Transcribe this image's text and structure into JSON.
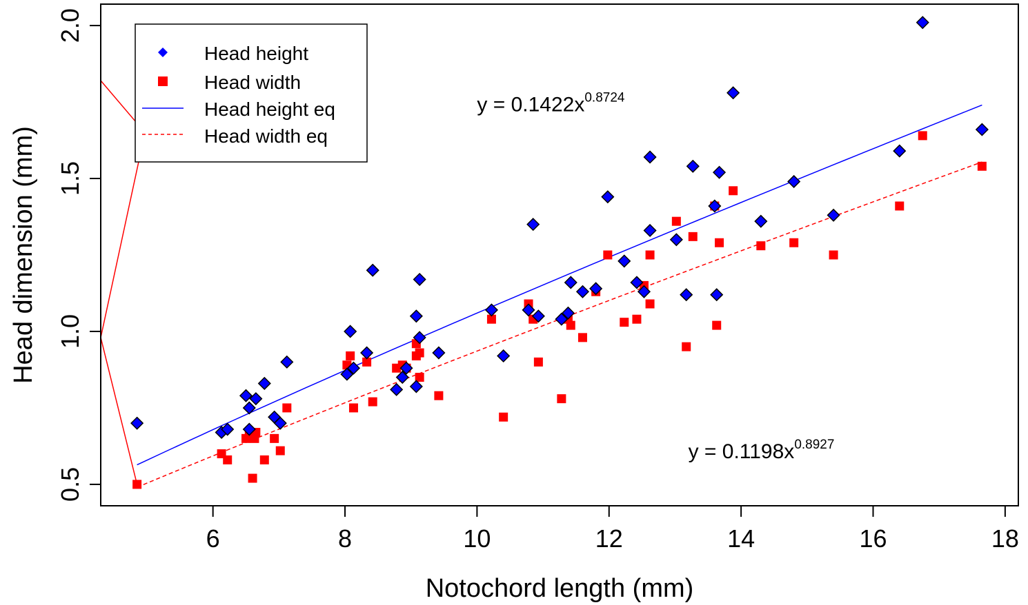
{
  "chart_data": {
    "type": "scatter",
    "xlabel": "Notochord length (mm)",
    "ylabel": "Head dimension (mm)",
    "xlim": [
      4.3,
      18.2
    ],
    "ylim": [
      0.43,
      2.07
    ],
    "x_ticks": [
      6,
      8,
      10,
      12,
      14,
      16,
      18
    ],
    "y_ticks": [
      0.5,
      1.0,
      1.5,
      2.0
    ],
    "x_tick_labels": [
      "6",
      "8",
      "10",
      "12",
      "14",
      "16",
      "18"
    ],
    "y_tick_labels": [
      "0.5",
      "1.0",
      "1.5",
      "2.0"
    ],
    "grid": false,
    "legend_position": "top-left",
    "series": [
      {
        "name": "Head height",
        "kind": "points",
        "marker": "diamond",
        "color": "#0000ff",
        "points": [
          [
            4.85,
            0.7
          ],
          [
            6.13,
            0.67
          ],
          [
            6.22,
            0.68
          ],
          [
            6.5,
            0.79
          ],
          [
            6.55,
            0.75
          ],
          [
            6.55,
            0.68
          ],
          [
            6.65,
            0.78
          ],
          [
            6.78,
            0.83
          ],
          [
            6.93,
            0.72
          ],
          [
            7.02,
            0.7
          ],
          [
            7.12,
            0.9
          ],
          [
            8.03,
            0.86
          ],
          [
            8.08,
            1.0
          ],
          [
            8.13,
            0.88
          ],
          [
            8.33,
            0.93
          ],
          [
            8.42,
            1.2
          ],
          [
            8.78,
            0.81
          ],
          [
            8.87,
            0.85
          ],
          [
            8.93,
            0.88
          ],
          [
            9.08,
            1.05
          ],
          [
            9.08,
            0.82
          ],
          [
            9.13,
            0.98
          ],
          [
            9.13,
            1.17
          ],
          [
            9.42,
            0.93
          ],
          [
            10.22,
            1.07
          ],
          [
            10.4,
            0.92
          ],
          [
            10.78,
            1.07
          ],
          [
            10.85,
            1.35
          ],
          [
            10.93,
            1.05
          ],
          [
            11.28,
            1.04
          ],
          [
            11.38,
            1.06
          ],
          [
            11.42,
            1.16
          ],
          [
            11.6,
            1.13
          ],
          [
            11.8,
            1.14
          ],
          [
            11.98,
            1.44
          ],
          [
            12.23,
            1.23
          ],
          [
            12.42,
            1.16
          ],
          [
            12.53,
            1.13
          ],
          [
            12.62,
            1.57
          ],
          [
            12.62,
            1.33
          ],
          [
            13.02,
            1.3
          ],
          [
            13.17,
            1.12
          ],
          [
            13.27,
            1.54
          ],
          [
            13.6,
            1.41
          ],
          [
            13.63,
            1.12
          ],
          [
            13.67,
            1.52
          ],
          [
            13.88,
            1.78
          ],
          [
            14.3,
            1.36
          ],
          [
            14.8,
            1.49
          ],
          [
            15.4,
            1.38
          ],
          [
            16.4,
            1.59
          ],
          [
            16.75,
            2.01
          ],
          [
            17.65,
            1.66
          ]
        ]
      },
      {
        "name": "Head width",
        "kind": "points",
        "marker": "square",
        "color": "#ff0000",
        "points": [
          [
            4.85,
            0.5
          ],
          [
            6.13,
            0.6
          ],
          [
            6.22,
            0.58
          ],
          [
            6.5,
            0.65
          ],
          [
            6.55,
            0.67
          ],
          [
            6.6,
            0.52
          ],
          [
            6.63,
            0.65
          ],
          [
            6.65,
            0.67
          ],
          [
            6.78,
            0.58
          ],
          [
            6.93,
            0.65
          ],
          [
            7.02,
            0.61
          ],
          [
            7.12,
            0.75
          ],
          [
            8.03,
            0.89
          ],
          [
            8.08,
            0.92
          ],
          [
            8.13,
            0.75
          ],
          [
            8.33,
            0.9
          ],
          [
            8.42,
            0.77
          ],
          [
            8.78,
            0.88
          ],
          [
            8.87,
            0.89
          ],
          [
            8.93,
            0.88
          ],
          [
            9.08,
            0.96
          ],
          [
            9.08,
            0.92
          ],
          [
            9.13,
            0.93
          ],
          [
            9.13,
            0.85
          ],
          [
            9.42,
            0.79
          ],
          [
            10.22,
            1.04
          ],
          [
            10.4,
            0.72
          ],
          [
            10.78,
            1.09
          ],
          [
            10.85,
            1.04
          ],
          [
            10.93,
            0.9
          ],
          [
            11.28,
            0.78
          ],
          [
            11.38,
            1.04
          ],
          [
            11.42,
            1.02
          ],
          [
            11.6,
            0.98
          ],
          [
            11.8,
            1.13
          ],
          [
            11.98,
            1.25
          ],
          [
            12.23,
            1.03
          ],
          [
            12.42,
            1.04
          ],
          [
            12.53,
            1.15
          ],
          [
            12.62,
            1.25
          ],
          [
            12.62,
            1.09
          ],
          [
            13.02,
            1.36
          ],
          [
            13.17,
            0.95
          ],
          [
            13.27,
            1.31
          ],
          [
            13.6,
            1.41
          ],
          [
            13.63,
            1.02
          ],
          [
            13.67,
            1.29
          ],
          [
            13.88,
            1.46
          ],
          [
            14.3,
            1.28
          ],
          [
            14.8,
            1.29
          ],
          [
            15.4,
            1.25
          ],
          [
            16.4,
            1.41
          ],
          [
            16.75,
            1.64
          ],
          [
            17.65,
            1.54
          ]
        ]
      },
      {
        "name": "Head height eq",
        "kind": "line",
        "style": "solid",
        "color": "#0000ff",
        "equation": {
          "a": 0.1422,
          "b": 0.8724
        },
        "x_range": [
          4.85,
          17.65
        ]
      },
      {
        "name": "Head width eq",
        "kind": "line",
        "style": "dashed",
        "color": "#ff0000",
        "equation": {
          "a": 0.1198,
          "b": 0.8927
        },
        "x_range": [
          4.85,
          17.65
        ]
      }
    ],
    "annotations": [
      {
        "text_main": "y = 0.1422x",
        "text_sup": "0.8724",
        "x": 10.0,
        "y": 1.72
      },
      {
        "text_main": "y = 0.1198x",
        "text_sup": "0.8927",
        "x": 13.2,
        "y": 0.585
      }
    ],
    "stray_line": {
      "color": "#ff0000",
      "points": [
        [
          4.3,
          1.82
        ],
        [
          4.97,
          1.65
        ],
        [
          4.3,
          0.98
        ],
        [
          4.85,
          0.5
        ]
      ]
    }
  }
}
